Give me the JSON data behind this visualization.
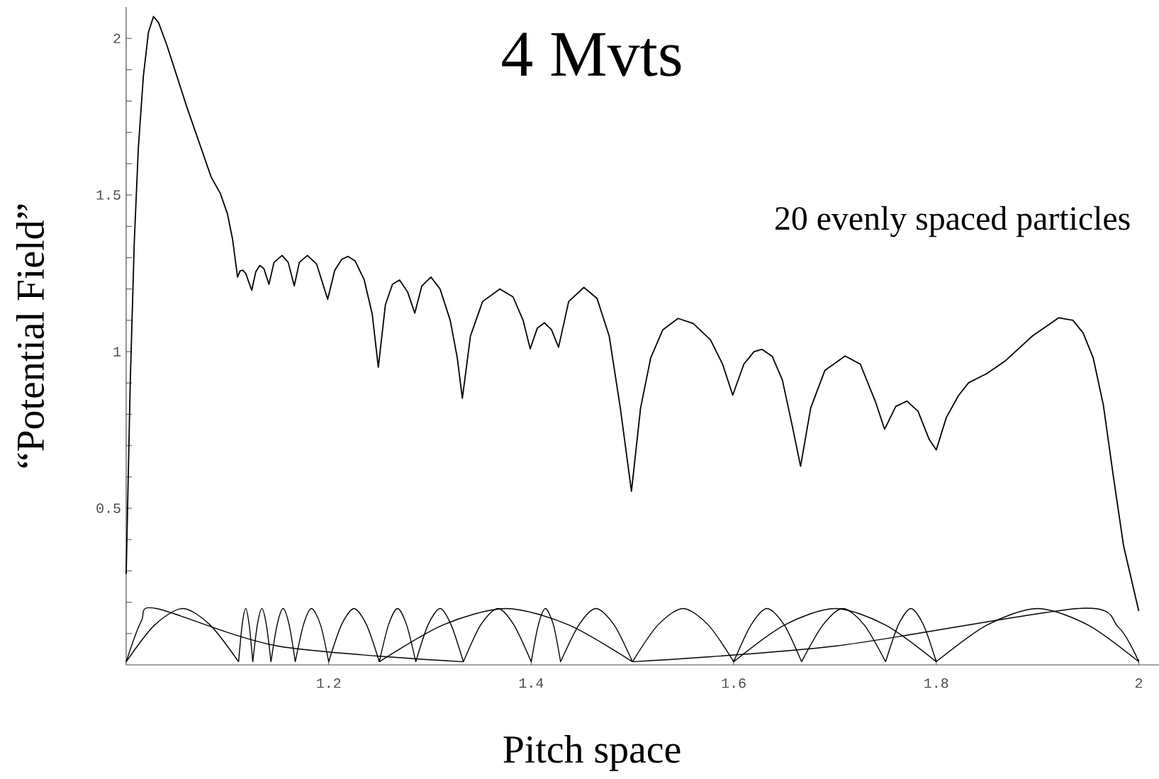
{
  "chart_data": {
    "type": "line",
    "title": "4 Mvts",
    "xlabel": "Pitch space",
    "ylabel": "“Potential Field”",
    "annotations": [
      "20 evenly spaced particles"
    ],
    "xlim": [
      1,
      2.02
    ],
    "ylim": [
      0,
      2.1
    ],
    "xticks": [
      1.2,
      1.4,
      1.6,
      1.8,
      2
    ],
    "yticks": [
      {
        "value": 0.1,
        "label": null
      },
      {
        "value": 0.2,
        "label": null
      },
      {
        "value": 0.3,
        "label": null
      },
      {
        "value": 0.4,
        "label": null
      },
      0.5,
      {
        "value": 0.6,
        "label": null
      },
      {
        "value": 0.7,
        "label": null
      },
      {
        "value": 0.8,
        "label": null
      },
      {
        "value": 0.9,
        "label": null
      },
      1,
      {
        "value": 1.1,
        "label": null
      },
      {
        "value": 1.2,
        "label": null
      },
      {
        "value": 1.3,
        "label": null
      },
      {
        "value": 1.4,
        "label": null
      },
      1.5,
      {
        "value": 1.6,
        "label": null
      },
      {
        "value": 1.7,
        "label": null
      },
      {
        "value": 1.8,
        "label": null
      },
      {
        "value": 1.9,
        "label": null
      },
      2
    ],
    "grid": false,
    "marker": "none",
    "line_style": "solid",
    "series": [
      {
        "color": "#000000",
        "x": [
          1.0,
          1.004,
          1.008,
          1.012,
          1.017,
          1.022,
          1.027,
          1.032,
          1.04,
          1.06,
          1.084,
          1.093,
          1.1,
          1.105,
          1.11,
          1.1125,
          1.115,
          1.118,
          1.124,
          1.128,
          1.132,
          1.136,
          1.141,
          1.146,
          1.154,
          1.16,
          1.166,
          1.171,
          1.179,
          1.188,
          1.199,
          1.206,
          1.213,
          1.219,
          1.226,
          1.235,
          1.243,
          1.249,
          1.256,
          1.263,
          1.27,
          1.278,
          1.285,
          1.292,
          1.301,
          1.31,
          1.32,
          1.327,
          1.332,
          1.34,
          1.352,
          1.369,
          1.382,
          1.392,
          1.399,
          1.406,
          1.413,
          1.42,
          1.427,
          1.437,
          1.452,
          1.465,
          1.477,
          1.488,
          1.499,
          1.508,
          1.518,
          1.53,
          1.545,
          1.56,
          1.577,
          1.589,
          1.599,
          1.61,
          1.62,
          1.628,
          1.638,
          1.648,
          1.658,
          1.666,
          1.676,
          1.69,
          1.71,
          1.725,
          1.74,
          1.749,
          1.76,
          1.771,
          1.782,
          1.793,
          1.8,
          1.81,
          1.822,
          1.832,
          1.85,
          1.868,
          1.895,
          1.921,
          1.935,
          1.945,
          1.955,
          1.965,
          1.975,
          1.985,
          2.0
        ],
        "values": [
          0.29,
          0.9,
          1.35,
          1.65,
          1.88,
          2.02,
          2.07,
          2.05,
          1.98,
          1.78,
          1.557,
          1.505,
          1.44,
          1.36,
          1.238,
          1.258,
          1.26,
          1.25,
          1.196,
          1.255,
          1.275,
          1.265,
          1.215,
          1.285,
          1.307,
          1.285,
          1.21,
          1.285,
          1.307,
          1.28,
          1.167,
          1.26,
          1.295,
          1.304,
          1.29,
          1.23,
          1.12,
          0.95,
          1.15,
          1.215,
          1.229,
          1.19,
          1.123,
          1.21,
          1.238,
          1.2,
          1.1,
          0.98,
          0.851,
          1.05,
          1.16,
          1.2,
          1.175,
          1.1,
          1.009,
          1.075,
          1.092,
          1.07,
          1.014,
          1.16,
          1.205,
          1.17,
          1.05,
          0.82,
          0.554,
          0.82,
          0.98,
          1.07,
          1.106,
          1.09,
          1.038,
          0.96,
          0.861,
          0.96,
          1.0,
          1.007,
          0.985,
          0.91,
          0.76,
          0.634,
          0.82,
          0.94,
          0.986,
          0.96,
          0.84,
          0.752,
          0.825,
          0.842,
          0.81,
          0.72,
          0.686,
          0.79,
          0.86,
          0.901,
          0.93,
          0.97,
          1.05,
          1.108,
          1.1,
          1.06,
          0.98,
          0.83,
          0.6,
          0.38,
          0.172
        ]
      },
      {
        "color": "#000000",
        "x": [
          1.0,
          1.028,
          1.056,
          1.083,
          1.111
        ],
        "values": [
          0.01,
          0.127,
          0.18,
          0.127,
          0.01
        ]
      },
      {
        "color": "#000000",
        "x": [
          1.111,
          1.1145,
          1.118,
          1.1215,
          1.125
        ],
        "values": [
          0.01,
          0.127,
          0.18,
          0.127,
          0.01
        ]
      },
      {
        "color": "#000000",
        "x": [
          1.125,
          1.1295,
          1.134,
          1.1385,
          1.143
        ],
        "values": [
          0.01,
          0.127,
          0.18,
          0.127,
          0.01
        ]
      },
      {
        "color": "#000000",
        "x": [
          1.143,
          1.149,
          1.155,
          1.161,
          1.167
        ],
        "values": [
          0.01,
          0.127,
          0.18,
          0.127,
          0.01
        ]
      },
      {
        "color": "#000000",
        "x": [
          1.167,
          1.175,
          1.183,
          1.192,
          1.2
        ],
        "values": [
          0.01,
          0.127,
          0.18,
          0.127,
          0.01
        ]
      },
      {
        "color": "#000000",
        "x": [
          1.2,
          1.2125,
          1.225,
          1.2375,
          1.25
        ],
        "values": [
          0.01,
          0.127,
          0.18,
          0.127,
          0.01
        ]
      },
      {
        "color": "#000000",
        "x": [
          1.25,
          1.259,
          1.268,
          1.277,
          1.286
        ],
        "values": [
          0.01,
          0.127,
          0.18,
          0.127,
          0.01
        ]
      },
      {
        "color": "#000000",
        "x": [
          1.286,
          1.298,
          1.31,
          1.321,
          1.333
        ],
        "values": [
          0.01,
          0.127,
          0.18,
          0.127,
          0.01
        ]
      },
      {
        "color": "#000000",
        "x": [
          1.333,
          1.35,
          1.367,
          1.383,
          1.4
        ],
        "values": [
          0.01,
          0.127,
          0.18,
          0.127,
          0.01
        ]
      },
      {
        "color": "#000000",
        "x": [
          1.4,
          1.407,
          1.414,
          1.422,
          1.429
        ],
        "values": [
          0.01,
          0.127,
          0.18,
          0.127,
          0.01
        ]
      },
      {
        "color": "#000000",
        "x": [
          1.429,
          1.447,
          1.464,
          1.482,
          1.5
        ],
        "values": [
          0.01,
          0.127,
          0.18,
          0.127,
          0.01
        ]
      },
      {
        "color": "#000000",
        "x": [
          1.5,
          1.525,
          1.55,
          1.575,
          1.6
        ],
        "values": [
          0.01,
          0.127,
          0.18,
          0.127,
          0.01
        ]
      },
      {
        "color": "#000000",
        "x": [
          1.6,
          1.617,
          1.633,
          1.65,
          1.667
        ],
        "values": [
          0.01,
          0.127,
          0.18,
          0.127,
          0.01
        ]
      },
      {
        "color": "#000000",
        "x": [
          1.667,
          1.688,
          1.708,
          1.729,
          1.75
        ],
        "values": [
          0.01,
          0.127,
          0.18,
          0.127,
          0.01
        ]
      },
      {
        "color": "#000000",
        "x": [
          1.75,
          1.7625,
          1.775,
          1.7875,
          1.8
        ],
        "values": [
          0.01,
          0.127,
          0.18,
          0.127,
          0.01
        ]
      },
      {
        "color": "#000000",
        "x": [
          1.8,
          1.85,
          1.9,
          1.95,
          2.0
        ],
        "values": [
          0.01,
          0.127,
          0.18,
          0.127,
          0.01
        ]
      },
      {
        "color": "#000000",
        "x": [
          1.0,
          1.015,
          1.03,
          1.15,
          1.333
        ],
        "values": [
          0.01,
          0.14,
          0.18,
          0.06,
          0.01
        ]
      },
      {
        "color": "#000000",
        "x": [
          1.5,
          1.7,
          1.94,
          1.98,
          2.0
        ],
        "values": [
          0.01,
          0.06,
          0.18,
          0.12,
          0.01
        ]
      },
      {
        "color": "#000000",
        "x": [
          1.25,
          1.3125,
          1.375,
          1.4375,
          1.5
        ],
        "values": [
          0.01,
          0.127,
          0.18,
          0.127,
          0.01
        ]
      },
      {
        "color": "#000000",
        "x": [
          1.6,
          1.65,
          1.7,
          1.75,
          1.8
        ],
        "values": [
          0.01,
          0.127,
          0.18,
          0.127,
          0.01
        ]
      }
    ]
  }
}
